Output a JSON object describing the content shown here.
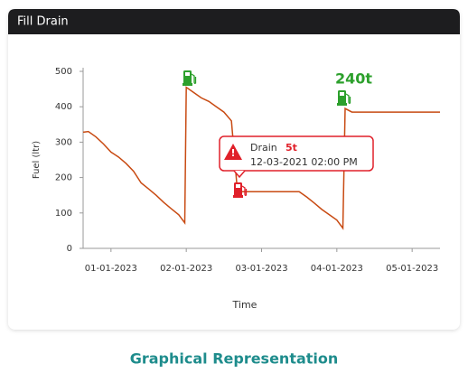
{
  "header": {
    "title": "Fill Drain"
  },
  "chart_data": {
    "type": "line",
    "y_label": "Fuel (ltr)",
    "x_label": "Time",
    "x": [
      -0.37,
      -0.3,
      -0.2,
      -0.1,
      0,
      0.1,
      0.2,
      0.3,
      0.4,
      0.5,
      0.6,
      0.7,
      0.8,
      0.9,
      0.98,
      1.0,
      1.1,
      1.2,
      1.3,
      1.4,
      1.5,
      1.6,
      1.68,
      1.8,
      2.0,
      2.2,
      2.5,
      2.6,
      2.7,
      2.8,
      2.9,
      3.0,
      3.08,
      3.11,
      3.2,
      3.3,
      4.37
    ],
    "values": [
      328,
      330,
      315,
      295,
      272,
      258,
      240,
      218,
      185,
      168,
      150,
      130,
      112,
      95,
      72,
      455,
      440,
      425,
      415,
      400,
      385,
      360,
      160,
      160,
      160,
      160,
      160,
      145,
      128,
      110,
      95,
      80,
      57,
      395,
      385,
      385,
      385
    ],
    "color": "#c84a12",
    "xlim": [
      -0.37,
      4.37
    ],
    "xticks": [
      {
        "value": 0,
        "label": "01-01-2023"
      },
      {
        "value": 1,
        "label": "02-01-2023"
      },
      {
        "value": 2,
        "label": "03-01-2023"
      },
      {
        "value": 3,
        "label": "04-01-2023"
      },
      {
        "value": 4,
        "label": "05-01-2023"
      }
    ],
    "ylim": [
      0,
      500
    ],
    "yticks": [
      0,
      100,
      200,
      300,
      400,
      500
    ],
    "annotation": "240t",
    "tooltip": {
      "label": "Drain",
      "amount": "5t",
      "datetime": "12-03-2021 02:00 PM"
    }
  },
  "caption": "Graphical Representation"
}
